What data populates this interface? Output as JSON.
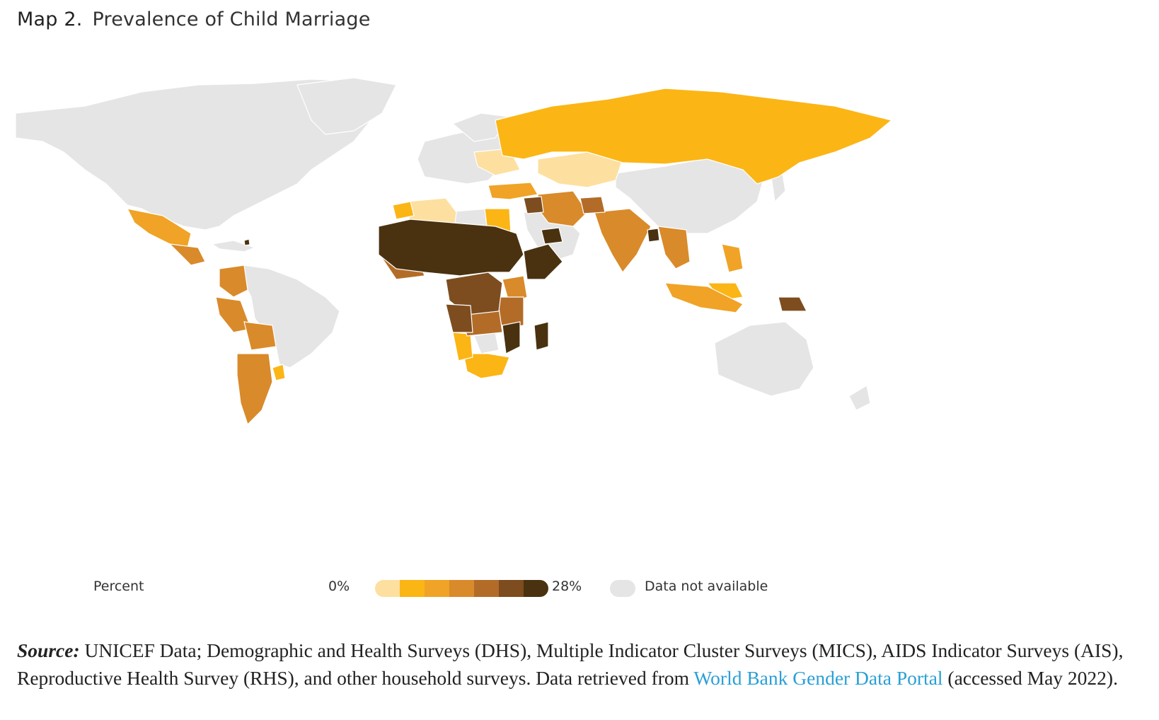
{
  "title": {
    "number": "Map 2.",
    "text": "Prevalence of Child Marriage"
  },
  "legend": {
    "label": "Percent",
    "min_label": "0%",
    "max_label": "28%",
    "na_label": "Data not available",
    "ramp_colors": [
      "#fddfa0",
      "#fbb515",
      "#f0a326",
      "#d98a2a",
      "#b36c28",
      "#7d4d1f",
      "#4a3210"
    ],
    "na_color": "#e5e5e5"
  },
  "source": {
    "lead": "Source:",
    "text": " UNICEF Data; Demographic and Health Surveys (DHS), Multiple Indicator Cluster Surveys (MICS), AIDS Indicator Surveys (AIS), Reproductive Health Survey (RHS), and other household surveys. Data retrieved from ",
    "link": "World Bank Gender Data Portal",
    "tail": " (accessed May 2022)."
  },
  "colors": {
    "no_data": "#e5e5e5",
    "very_low": "#fddfa0",
    "low": "#fbb515",
    "mid_low": "#f0a326",
    "mid": "#d98a2a",
    "mid_high": "#b36c28",
    "high": "#7d4d1f",
    "very_high": "#4a3210"
  }
}
